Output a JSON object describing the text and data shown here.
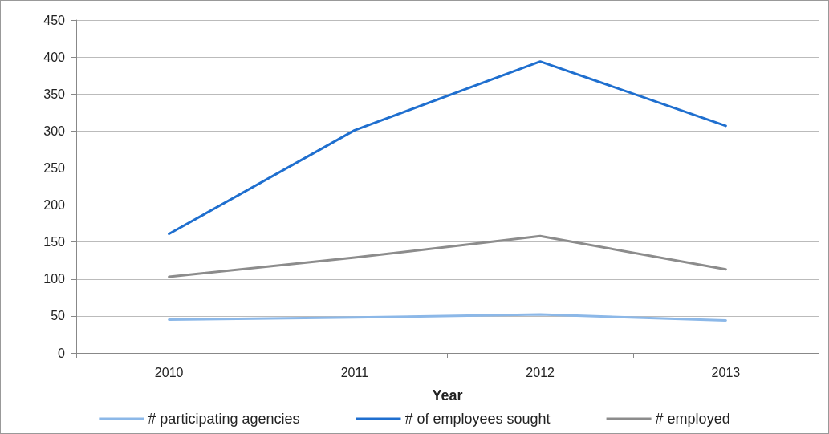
{
  "chart_data": {
    "type": "line",
    "xlabel": "Year",
    "categories": [
      "2010",
      "2011",
      "2012",
      "2013"
    ],
    "series": [
      {
        "name": "# participating agencies",
        "color": "#8cb8e8",
        "values": [
          45,
          48,
          52,
          44
        ]
      },
      {
        "name": "# of employees sought",
        "color": "#1f6fcf",
        "values": [
          161,
          301,
          394,
          307
        ]
      },
      {
        "name": "# employed",
        "color": "#8c8c8c",
        "values": [
          103,
          129,
          158,
          113
        ]
      }
    ],
    "ylim": [
      0,
      450
    ],
    "yticks": [
      0,
      50,
      100,
      150,
      200,
      250,
      300,
      350,
      400,
      450
    ],
    "grid": "y",
    "legend": "bottom",
    "marker": "none",
    "line_style": "solid"
  }
}
